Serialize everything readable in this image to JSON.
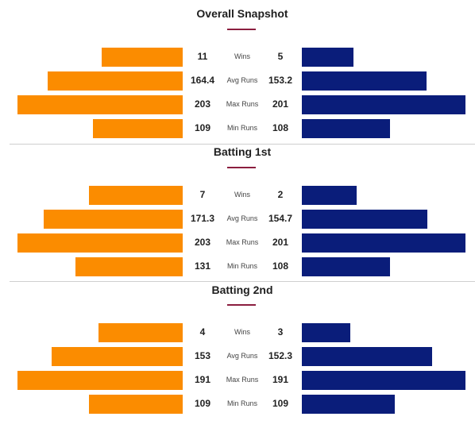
{
  "sections": [
    {
      "title": "Overall Snapshot",
      "rows": [
        {
          "label": "Wins",
          "left": "11",
          "right": "5",
          "left_frac": 0.491,
          "right_frac": 0.314
        },
        {
          "label": "Avg Runs",
          "left": "164.4",
          "right": "153.2",
          "left_frac": 0.818,
          "right_frac": 0.76
        },
        {
          "label": "Max Runs",
          "left": "203",
          "right": "201",
          "left_frac": 1.0,
          "right_frac": 1.0
        },
        {
          "label": "Min Runs",
          "left": "109",
          "right": "108",
          "left_frac": 0.541,
          "right_frac": 0.537
        }
      ]
    },
    {
      "title": "Batting 1st",
      "rows": [
        {
          "label": "Wins",
          "left": "7",
          "right": "2",
          "left_frac": 0.565,
          "right_frac": 0.335
        },
        {
          "label": "Avg Runs",
          "left": "171.3",
          "right": "154.7",
          "left_frac": 0.843,
          "right_frac": 0.766
        },
        {
          "label": "Max Runs",
          "left": "203",
          "right": "201",
          "left_frac": 1.0,
          "right_frac": 1.0
        },
        {
          "label": "Min Runs",
          "left": "131",
          "right": "108",
          "left_frac": 0.65,
          "right_frac": 0.537
        }
      ]
    },
    {
      "title": "Batting 2nd",
      "rows": [
        {
          "label": "Wins",
          "left": "4",
          "right": "3",
          "left_frac": 0.51,
          "right_frac": 0.295
        },
        {
          "label": "Avg Runs",
          "left": "153",
          "right": "152.3",
          "left_frac": 0.794,
          "right_frac": 0.795
        },
        {
          "label": "Max Runs",
          "left": "191",
          "right": "191",
          "left_frac": 1.0,
          "right_frac": 1.0
        },
        {
          "label": "Min Runs",
          "left": "109",
          "right": "109",
          "left_frac": 0.568,
          "right_frac": 0.568
        }
      ]
    }
  ],
  "colors": {
    "left_team": "#fb8c00",
    "right_team": "#0a1d7a",
    "accent": "#8b1e3f"
  }
}
